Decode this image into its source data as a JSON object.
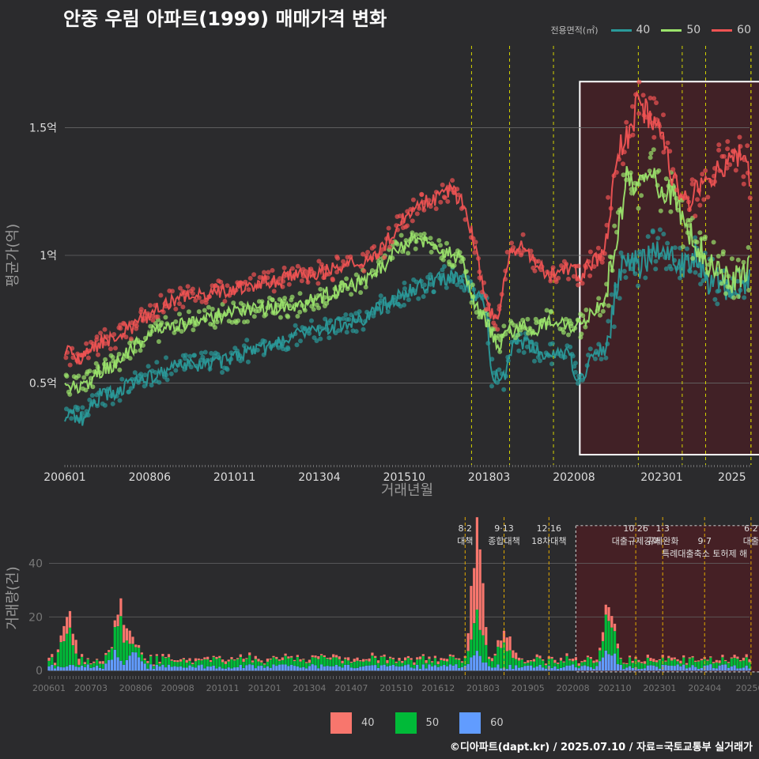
{
  "title": "안중 우림 아파트(1999) 매매가격 변화",
  "legend": {
    "title": "전용면적(㎡)",
    "items": [
      {
        "label": "40",
        "color": "#2a9a9a"
      },
      {
        "label": "50",
        "color": "#9be36b"
      },
      {
        "label": "60",
        "color": "#ef5353"
      }
    ]
  },
  "bar_legend": [
    {
      "label": "40",
      "color": "#f8766d"
    },
    {
      "label": "50",
      "color": "#00ba38"
    },
    {
      "label": "60",
      "color": "#619cff"
    }
  ],
  "footer": "©디아파트(dapt.kr) / 2025.07.10 / 자료=국토교통부 실거래가",
  "chart_data": [
    {
      "type": "line",
      "title": "안중 우림 아파트(1999) 매매가격 변화",
      "xlabel": "거래년월",
      "ylabel": "평균가(억)",
      "x_tick_labels": [
        "200601",
        "200806",
        "201011",
        "201304",
        "201510",
        "201803",
        "202008",
        "202301",
        "2025"
      ],
      "x_tick_months": [
        0,
        29,
        58,
        87,
        116,
        145,
        174,
        204,
        228
      ],
      "y_tick_labels": [
        "0.5억",
        "1억",
        "1.5억"
      ],
      "y_tick_values": [
        0.5,
        1.0,
        1.5
      ],
      "ylim": [
        0.18,
        1.82
      ],
      "month_range": [
        0,
        234
      ],
      "policy_lines_month": [
        139,
        152,
        167,
        196,
        211,
        219,
        236,
        245
      ],
      "highlight_months": [
        176,
        244
      ],
      "series": [
        {
          "name": "40",
          "color": "#2a9a9a",
          "points": [
            [
              0,
              0.38
            ],
            [
              6,
              0.36
            ],
            [
              12,
              0.45
            ],
            [
              18,
              0.47
            ],
            [
              24,
              0.5
            ],
            [
              30,
              0.53
            ],
            [
              36,
              0.56
            ],
            [
              42,
              0.57
            ],
            [
              48,
              0.58
            ],
            [
              54,
              0.58
            ],
            [
              60,
              0.62
            ],
            [
              66,
              0.63
            ],
            [
              72,
              0.65
            ],
            [
              78,
              0.68
            ],
            [
              84,
              0.7
            ],
            [
              90,
              0.72
            ],
            [
              96,
              0.73
            ],
            [
              102,
              0.75
            ],
            [
              108,
              0.8
            ],
            [
              114,
              0.84
            ],
            [
              120,
              0.87
            ],
            [
              126,
              0.9
            ],
            [
              132,
              0.92
            ],
            [
              138,
              0.88
            ],
            [
              144,
              0.8
            ],
            [
              146,
              0.53
            ],
            [
              150,
              0.52
            ],
            [
              154,
              0.68
            ],
            [
              160,
              0.63
            ],
            [
              166,
              0.61
            ],
            [
              172,
              0.62
            ],
            [
              176,
              0.5
            ],
            [
              180,
              0.6
            ],
            [
              185,
              0.64
            ],
            [
              189,
              0.9
            ],
            [
              192,
              1.0
            ],
            [
              196,
              0.95
            ],
            [
              200,
              1.0
            ],
            [
              204,
              1.05
            ],
            [
              208,
              1.0
            ],
            [
              212,
              0.95
            ],
            [
              216,
              1.0
            ],
            [
              220,
              0.9
            ],
            [
              224,
              0.9
            ],
            [
              228,
              0.85
            ],
            [
              232,
              0.88
            ],
            [
              234,
              0.92
            ]
          ]
        },
        {
          "name": "50",
          "color": "#9be36b",
          "points": [
            [
              0,
              0.5
            ],
            [
              6,
              0.48
            ],
            [
              12,
              0.55
            ],
            [
              18,
              0.58
            ],
            [
              24,
              0.65
            ],
            [
              30,
              0.7
            ],
            [
              36,
              0.72
            ],
            [
              42,
              0.74
            ],
            [
              48,
              0.75
            ],
            [
              54,
              0.77
            ],
            [
              60,
              0.78
            ],
            [
              66,
              0.79
            ],
            [
              72,
              0.8
            ],
            [
              78,
              0.8
            ],
            [
              84,
              0.82
            ],
            [
              90,
              0.85
            ],
            [
              96,
              0.87
            ],
            [
              102,
              0.9
            ],
            [
              108,
              0.95
            ],
            [
              114,
              1.03
            ],
            [
              120,
              1.07
            ],
            [
              126,
              1.05
            ],
            [
              132,
              1.0
            ],
            [
              136,
              0.98
            ],
            [
              140,
              0.8
            ],
            [
              144,
              0.74
            ],
            [
              148,
              0.65
            ],
            [
              152,
              0.7
            ],
            [
              156,
              0.72
            ],
            [
              160,
              0.7
            ],
            [
              166,
              0.75
            ],
            [
              172,
              0.73
            ],
            [
              176,
              0.72
            ],
            [
              180,
              0.78
            ],
            [
              184,
              0.8
            ],
            [
              189,
              1.1
            ],
            [
              192,
              1.3
            ],
            [
              196,
              1.25
            ],
            [
              200,
              1.35
            ],
            [
              204,
              1.25
            ],
            [
              208,
              1.25
            ],
            [
              212,
              1.1
            ],
            [
              216,
              1.05
            ],
            [
              220,
              0.98
            ],
            [
              224,
              0.96
            ],
            [
              228,
              0.9
            ],
            [
              232,
              0.92
            ],
            [
              234,
              0.95
            ]
          ]
        },
        {
          "name": "60",
          "color": "#ef5353",
          "points": [
            [
              0,
              0.62
            ],
            [
              6,
              0.6
            ],
            [
              12,
              0.66
            ],
            [
              18,
              0.68
            ],
            [
              24,
              0.73
            ],
            [
              30,
              0.78
            ],
            [
              36,
              0.82
            ],
            [
              42,
              0.84
            ],
            [
              48,
              0.85
            ],
            [
              54,
              0.86
            ],
            [
              60,
              0.88
            ],
            [
              66,
              0.89
            ],
            [
              72,
              0.9
            ],
            [
              78,
              0.92
            ],
            [
              84,
              0.93
            ],
            [
              90,
              0.94
            ],
            [
              96,
              0.96
            ],
            [
              102,
              0.98
            ],
            [
              108,
              1.02
            ],
            [
              114,
              1.12
            ],
            [
              120,
              1.2
            ],
            [
              126,
              1.22
            ],
            [
              132,
              1.26
            ],
            [
              136,
              1.2
            ],
            [
              140,
              1.05
            ],
            [
              144,
              0.8
            ],
            [
              148,
              0.75
            ],
            [
              152,
              1.0
            ],
            [
              156,
              1.05
            ],
            [
              160,
              0.98
            ],
            [
              166,
              0.92
            ],
            [
              172,
              0.95
            ],
            [
              176,
              0.92
            ],
            [
              180,
              0.97
            ],
            [
              184,
              1.0
            ],
            [
              189,
              1.4
            ],
            [
              192,
              1.45
            ],
            [
              196,
              1.6
            ],
            [
              200,
              1.55
            ],
            [
              204,
              1.5
            ],
            [
              208,
              1.3
            ],
            [
              212,
              1.2
            ],
            [
              216,
              1.25
            ],
            [
              220,
              1.3
            ],
            [
              224,
              1.35
            ],
            [
              228,
              1.4
            ],
            [
              232,
              1.38
            ],
            [
              234,
              1.3
            ]
          ]
        }
      ]
    },
    {
      "type": "bar",
      "xlabel": "",
      "ylabel": "거래량(건)",
      "stacked": true,
      "y_tick_labels": [
        "0",
        "20",
        "40"
      ],
      "y_tick_values": [
        0,
        20,
        40
      ],
      "ylim": [
        -2,
        56
      ],
      "x_tick_labels": [
        "200601",
        "200703",
        "200806",
        "200908",
        "201011",
        "201201",
        "201304",
        "201407",
        "201510",
        "201612",
        "201803",
        "201905",
        "202008",
        "202110",
        "202301",
        "202404",
        "20250"
      ],
      "x_tick_months": [
        0,
        14,
        29,
        43,
        58,
        72,
        87,
        101,
        116,
        130,
        145,
        160,
        175,
        189,
        204,
        219,
        234
      ],
      "month_range": [
        0,
        234
      ],
      "series": [
        {
          "name": "60",
          "color": "#619cff",
          "peaks": [
            [
              22,
              6
            ],
            [
              29,
              7
            ],
            [
              143,
              5
            ],
            [
              187,
              8
            ]
          ],
          "base": 2
        },
        {
          "name": "50",
          "color": "#00ba38",
          "peaks": [
            [
              6,
              13
            ],
            [
              24,
              12
            ],
            [
              143,
              15
            ],
            [
              152,
              8
            ],
            [
              187,
              13
            ]
          ],
          "base": 3
        },
        {
          "name": "40",
          "color": "#f8766d",
          "peaks": [
            [
              7,
              8
            ],
            [
              25,
              7
            ],
            [
              143,
              33
            ],
            [
              153,
              6
            ],
            [
              187,
              4
            ]
          ],
          "base": 1
        }
      ],
      "policy_annotations": [
        {
          "month": 139,
          "date": "8·2",
          "label": "대책"
        },
        {
          "month": 152,
          "date": "9·13",
          "label": "종합대책"
        },
        {
          "month": 167,
          "date": "12·16",
          "label": "18차대책"
        },
        {
          "month": 196,
          "date": "10·26",
          "label": "대출규제강화"
        },
        {
          "month": 205,
          "date": "1·3",
          "label": "규제완화"
        },
        {
          "month": 219,
          "date": "9·7",
          "label": "특례대출축소 토허제 해"
        },
        {
          "month": 245,
          "date": "6·2",
          "label": "대출"
        }
      ],
      "highlight_months": [
        176,
        244
      ]
    }
  ]
}
